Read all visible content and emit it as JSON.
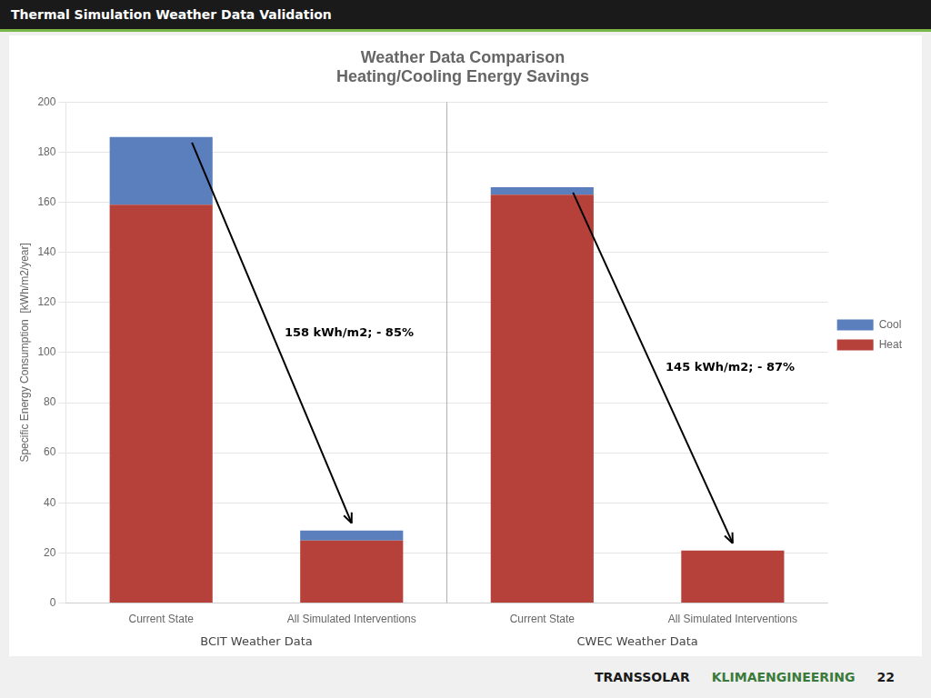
{
  "chart_data": {
    "type": "bar",
    "title": "Weather Data Comparison",
    "subtitle": "Heating/Cooling Energy Savings",
    "header": "Thermal Simulation Weather Data Validation",
    "footer": [
      "TRANSSOLAR",
      "KLIMAENGINEERING",
      "22"
    ],
    "y_label": "Specific Energy Consumption  [kWh/m2/year]",
    "categories": [
      "Current State",
      "All Simulated Interventions",
      "Current State",
      "All Simulated Interventions"
    ],
    "group_labels": [
      "BCIT Weather Data",
      "CWEC Weather Data"
    ],
    "annotations": [
      "158 kWh/m2; - 85%",
      "145 kWh/m2; - 87%"
    ],
    "series": [
      {
        "name": "Heat",
        "color": "#b5413a",
        "values": [
          159,
          25,
          163,
          21
        ]
      },
      {
        "name": "Cool",
        "color": "#5b7fbd",
        "values": [
          27,
          4,
          3,
          0
        ]
      }
    ],
    "stacked": true,
    "ylim": [
      0,
      200
    ],
    "yticks": [
      0,
      20,
      40,
      60,
      80,
      100,
      120,
      140,
      160,
      180,
      200
    ],
    "grid": true,
    "legend": "right"
  }
}
